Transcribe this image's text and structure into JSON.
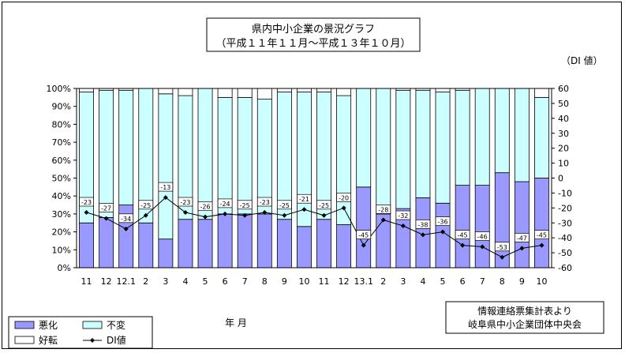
{
  "chart_data": {
    "type": "bar",
    "title": "県内中小企業の景況グラフ",
    "subtitle": "（平成１１年１１月～平成１３年１０月）",
    "right_axis_label": "（DI 値）",
    "xlabel": "年 月",
    "source_lines": [
      "情報連絡票集計表より",
      "岐阜県中小企業団体中央会"
    ],
    "categories": [
      "11",
      "12",
      "12.1",
      "2",
      "3",
      "4",
      "5",
      "6",
      "7",
      "8",
      "9",
      "10",
      "11",
      "12",
      "13.1",
      "2",
      "3",
      "4",
      "5",
      "6",
      "7",
      "8",
      "9",
      "10"
    ],
    "left_ylim": [
      0,
      100
    ],
    "left_yticks": [
      "0%",
      "10%",
      "20%",
      "30%",
      "40%",
      "50%",
      "60%",
      "70%",
      "80%",
      "90%",
      "100%"
    ],
    "right_ylim": [
      -60,
      60
    ],
    "right_yticks": [
      "60",
      "50",
      "40",
      "30",
      "20",
      "10",
      "0",
      "-10",
      "-20",
      "-30",
      "-40",
      "-50",
      "-60"
    ],
    "series": [
      {
        "name": "悪化",
        "color": "#9999ff",
        "values": [
          25,
          28,
          35,
          25,
          16,
          27,
          27,
          30,
          30,
          30,
          27,
          23,
          27,
          24,
          45,
          30,
          33,
          39,
          36,
          46,
          46,
          53,
          48,
          50
        ]
      },
      {
        "name": "不変",
        "color": "#ccffff",
        "values": [
          73,
          71,
          64,
          75,
          81,
          69,
          73,
          65,
          65,
          64,
          71,
          75,
          71,
          72,
          55,
          70,
          66,
          60,
          62,
          53,
          54,
          47,
          52,
          45
        ]
      },
      {
        "name": "好転",
        "color": "#ffffff",
        "values": [
          2,
          1,
          1,
          0,
          3,
          4,
          0,
          5,
          5,
          6,
          2,
          2,
          2,
          4,
          0,
          0,
          1,
          1,
          2,
          1,
          0,
          0,
          0,
          5
        ]
      }
    ],
    "di_series": {
      "name": "DI値",
      "values": [
        -23,
        -27,
        -34,
        -25,
        -13,
        -23,
        -26,
        -24,
        -25,
        -23,
        -25,
        -21,
        -25,
        -20,
        -45,
        -28,
        -32,
        -38,
        -36,
        -45,
        -46,
        -53,
        -47,
        -45
      ]
    },
    "grid": false,
    "legend": "bottom-left"
  }
}
